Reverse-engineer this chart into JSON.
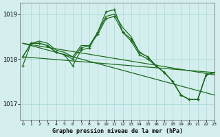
{
  "title": "Graphe pression niveau de la mer (hPa)",
  "bg_color": "#d4eeee",
  "grid_color": "#a8d8d8",
  "line_color": "#1a6b1a",
  "xlim": [
    -0.3,
    23
  ],
  "ylim": [
    1016.65,
    1019.25
  ],
  "yticks": [
    1017,
    1018,
    1019
  ],
  "xticks": [
    0,
    1,
    2,
    3,
    4,
    5,
    6,
    7,
    8,
    9,
    10,
    11,
    12,
    13,
    14,
    15,
    16,
    17,
    18,
    19,
    20,
    21,
    22,
    23
  ],
  "series": [
    {
      "points": [
        [
          0,
          1018.05
        ],
        [
          1,
          1018.35
        ],
        [
          2,
          1018.35
        ],
        [
          3,
          1018.3
        ],
        [
          4,
          1018.15
        ],
        [
          5,
          1018.1
        ],
        [
          6,
          1017.85
        ],
        [
          7,
          1018.2
        ],
        [
          8,
          1018.25
        ],
        [
          9,
          1018.6
        ],
        [
          10,
          1019.05
        ],
        [
          11,
          1019.1
        ],
        [
          12,
          1018.6
        ],
        [
          13,
          1018.4
        ],
        [
          14,
          1018.1
        ],
        [
          15,
          1018.0
        ],
        [
          16,
          1017.85
        ],
        [
          17,
          1017.7
        ],
        [
          18,
          1017.5
        ],
        [
          19,
          1017.2
        ],
        [
          20,
          1017.1
        ],
        [
          21,
          1017.1
        ],
        [
          22,
          1017.65
        ],
        [
          23,
          1017.7
        ]
      ],
      "has_markers": true
    },
    {
      "points": [
        [
          0,
          1017.85
        ],
        [
          1,
          1018.35
        ],
        [
          2,
          1018.35
        ],
        [
          3,
          1018.3
        ],
        [
          4,
          1018.15
        ],
        [
          5,
          1018.1
        ],
        [
          6,
          1018.0
        ],
        [
          7,
          1018.25
        ],
        [
          8,
          1018.3
        ],
        [
          9,
          1018.55
        ],
        [
          10,
          1018.9
        ],
        [
          11,
          1018.95
        ],
        [
          12,
          1018.6
        ],
        [
          13,
          1018.45
        ],
        [
          14,
          1018.15
        ],
        [
          15,
          1018.05
        ],
        [
          16,
          1017.85
        ],
        [
          17,
          1017.7
        ],
        [
          18,
          1017.5
        ],
        [
          19,
          1017.2
        ],
        [
          20,
          1017.1
        ],
        [
          21,
          1017.1
        ],
        [
          22,
          1017.65
        ],
        [
          23,
          1017.7
        ]
      ],
      "has_markers": true
    },
    {
      "points": [
        [
          0,
          1018.05
        ],
        [
          1,
          1018.35
        ],
        [
          2,
          1018.4
        ],
        [
          3,
          1018.35
        ],
        [
          4,
          1018.2
        ],
        [
          5,
          1018.15
        ],
        [
          6,
          1018.05
        ],
        [
          7,
          1018.3
        ],
        [
          8,
          1018.3
        ],
        [
          9,
          1018.6
        ],
        [
          10,
          1018.95
        ],
        [
          11,
          1019.0
        ],
        [
          12,
          1018.7
        ],
        [
          13,
          1018.5
        ],
        [
          14,
          1018.15
        ],
        [
          15,
          1018.05
        ],
        [
          16,
          1017.85
        ],
        [
          17,
          1017.7
        ],
        [
          18,
          1017.5
        ],
        [
          19,
          1017.2
        ],
        [
          20,
          1017.1
        ],
        [
          21,
          1017.1
        ],
        [
          22,
          1017.65
        ],
        [
          23,
          1017.7
        ]
      ],
      "has_markers": false
    },
    {
      "points": [
        [
          0,
          1018.05
        ],
        [
          23,
          1017.7
        ]
      ],
      "has_markers": false
    },
    {
      "points": [
        [
          0,
          1018.35
        ],
        [
          23,
          1017.2
        ]
      ],
      "has_markers": false
    },
    {
      "points": [
        [
          0,
          1018.35
        ],
        [
          23,
          1017.65
        ]
      ],
      "has_markers": false
    }
  ]
}
